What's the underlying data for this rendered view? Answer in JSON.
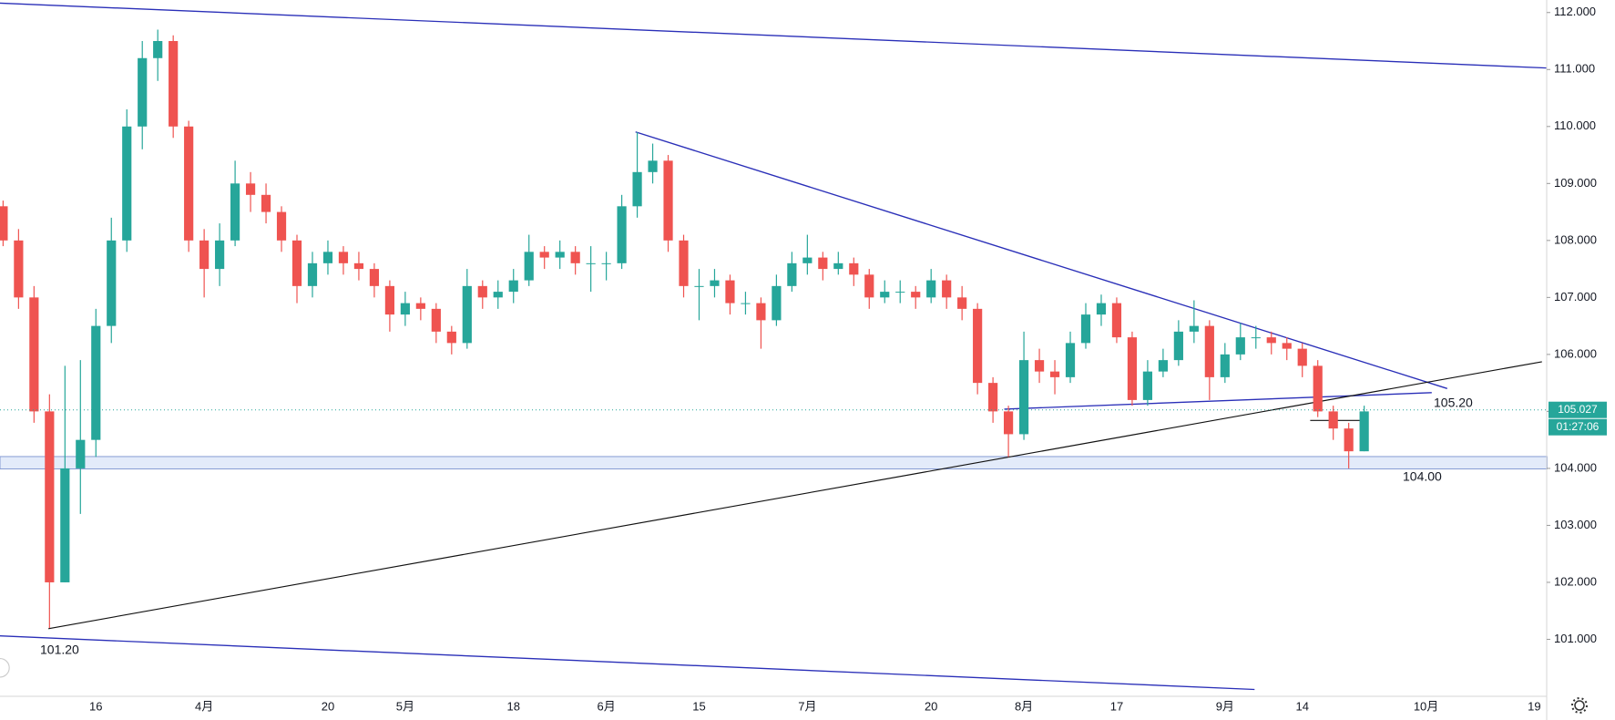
{
  "chart_data": {
    "type": "candlestick",
    "categories": [
      null,
      null,
      null,
      null,
      null,
      null,
      "16",
      null,
      null,
      null,
      null,
      null,
      null,
      "4月",
      null,
      null,
      null,
      null,
      null,
      null,
      null,
      "20",
      null,
      null,
      null,
      null,
      "5月",
      null,
      null,
      null,
      null,
      null,
      null,
      "18",
      null,
      null,
      null,
      null,
      null,
      "6月",
      null,
      null,
      null,
      null,
      null,
      "15",
      null,
      null,
      null,
      null,
      null,
      null,
      "7月",
      null,
      null,
      null,
      null,
      null,
      null,
      null,
      "20",
      null,
      null,
      null,
      null,
      null,
      "8月",
      null,
      null,
      null,
      null,
      null,
      "17",
      null,
      null,
      null,
      null,
      null,
      null,
      "9月",
      null,
      null,
      null,
      null,
      "14",
      null,
      null,
      null,
      null,
      null,
      null,
      null,
      "10月",
      null,
      null,
      null,
      null,
      null,
      null,
      "19"
    ],
    "ohlc": [
      [
        108.6,
        108.7,
        107.9,
        108.0
      ],
      [
        108.0,
        108.2,
        106.8,
        107.0
      ],
      [
        107.0,
        107.2,
        104.8,
        105.0
      ],
      [
        105.0,
        105.3,
        101.2,
        102.0
      ],
      [
        102.0,
        105.8,
        102.0,
        104.0
      ],
      [
        104.0,
        105.9,
        103.2,
        104.5
      ],
      [
        104.5,
        106.8,
        104.2,
        106.5
      ],
      [
        106.5,
        108.4,
        106.2,
        108.0
      ],
      [
        108.0,
        110.3,
        107.8,
        110.0
      ],
      [
        110.0,
        111.5,
        109.6,
        111.2
      ],
      [
        111.2,
        111.7,
        110.8,
        111.5
      ],
      [
        111.5,
        111.6,
        109.8,
        110.0
      ],
      [
        110.0,
        110.1,
        107.8,
        108.0
      ],
      [
        108.0,
        108.2,
        107.0,
        107.5
      ],
      [
        107.5,
        108.3,
        107.2,
        108.0
      ],
      [
        108.0,
        109.4,
        107.9,
        109.0
      ],
      [
        109.0,
        109.2,
        108.5,
        108.8
      ],
      [
        108.8,
        109.0,
        108.3,
        108.5
      ],
      [
        108.5,
        108.6,
        107.8,
        108.0
      ],
      [
        108.0,
        108.1,
        106.9,
        107.2
      ],
      [
        107.2,
        107.8,
        107.0,
        107.6
      ],
      [
        107.6,
        108.0,
        107.4,
        107.8
      ],
      [
        107.8,
        107.9,
        107.4,
        107.6
      ],
      [
        107.6,
        107.8,
        107.3,
        107.5
      ],
      [
        107.5,
        107.6,
        107.0,
        107.2
      ],
      [
        107.2,
        107.3,
        106.4,
        106.7
      ],
      [
        106.7,
        107.1,
        106.5,
        106.9
      ],
      [
        106.9,
        107.0,
        106.6,
        106.8
      ],
      [
        106.8,
        106.9,
        106.2,
        106.4
      ],
      [
        106.4,
        106.5,
        106.0,
        106.2
      ],
      [
        106.2,
        107.5,
        106.1,
        107.2
      ],
      [
        107.2,
        107.3,
        106.8,
        107.0
      ],
      [
        107.0,
        107.3,
        106.8,
        107.1
      ],
      [
        107.1,
        107.5,
        106.9,
        107.3
      ],
      [
        107.3,
        108.1,
        107.2,
        107.8
      ],
      [
        107.8,
        107.9,
        107.5,
        107.7
      ],
      [
        107.7,
        108.0,
        107.5,
        107.8
      ],
      [
        107.8,
        107.9,
        107.4,
        107.6
      ],
      [
        107.6,
        107.9,
        107.1,
        107.6
      ],
      [
        107.6,
        107.8,
        107.3,
        107.6
      ],
      [
        107.6,
        108.8,
        107.5,
        108.6
      ],
      [
        108.6,
        109.9,
        108.4,
        109.2
      ],
      [
        109.2,
        109.7,
        109.0,
        109.4
      ],
      [
        109.4,
        109.5,
        107.8,
        108.0
      ],
      [
        108.0,
        108.1,
        107.0,
        107.2
      ],
      [
        107.2,
        107.5,
        106.6,
        107.2
      ],
      [
        107.2,
        107.5,
        107.0,
        107.3
      ],
      [
        107.3,
        107.4,
        106.7,
        106.9
      ],
      [
        106.9,
        107.1,
        106.7,
        106.9
      ],
      [
        106.9,
        107.0,
        106.1,
        106.6
      ],
      [
        106.6,
        107.4,
        106.5,
        107.2
      ],
      [
        107.2,
        107.8,
        107.1,
        107.6
      ],
      [
        107.6,
        108.1,
        107.4,
        107.7
      ],
      [
        107.7,
        107.8,
        107.3,
        107.5
      ],
      [
        107.5,
        107.8,
        107.4,
        107.6
      ],
      [
        107.6,
        107.7,
        107.2,
        107.4
      ],
      [
        107.4,
        107.5,
        106.8,
        107.0
      ],
      [
        107.0,
        107.3,
        106.9,
        107.1
      ],
      [
        107.1,
        107.3,
        106.9,
        107.1
      ],
      [
        107.1,
        107.2,
        106.8,
        107.0
      ],
      [
        107.0,
        107.5,
        106.9,
        107.3
      ],
      [
        107.3,
        107.4,
        106.8,
        107.0
      ],
      [
        107.0,
        107.2,
        106.6,
        106.8
      ],
      [
        106.8,
        106.9,
        105.3,
        105.5
      ],
      [
        105.5,
        105.6,
        104.8,
        105.0
      ],
      [
        105.0,
        105.1,
        104.2,
        104.6
      ],
      [
        104.6,
        106.4,
        104.5,
        105.9
      ],
      [
        105.9,
        106.1,
        105.5,
        105.7
      ],
      [
        105.7,
        105.9,
        105.3,
        105.6
      ],
      [
        105.6,
        106.4,
        105.5,
        106.2
      ],
      [
        106.2,
        106.9,
        106.1,
        106.7
      ],
      [
        106.7,
        107.05,
        106.5,
        106.9
      ],
      [
        106.9,
        107.0,
        106.2,
        106.3
      ],
      [
        106.3,
        106.4,
        105.1,
        105.2
      ],
      [
        105.2,
        105.9,
        105.1,
        105.7
      ],
      [
        105.7,
        106.1,
        105.6,
        105.9
      ],
      [
        105.9,
        106.6,
        105.8,
        106.4
      ],
      [
        106.4,
        106.95,
        106.2,
        106.5
      ],
      [
        106.5,
        106.6,
        105.2,
        105.6
      ],
      [
        105.6,
        106.2,
        105.5,
        106.0
      ],
      [
        106.0,
        106.55,
        105.9,
        106.3
      ],
      [
        106.3,
        106.5,
        106.1,
        106.3
      ],
      [
        106.3,
        106.4,
        106.0,
        106.2
      ],
      [
        106.2,
        106.3,
        105.9,
        106.1
      ],
      [
        106.1,
        106.2,
        105.6,
        105.8
      ],
      [
        105.8,
        105.9,
        104.9,
        105.0
      ],
      [
        105.0,
        105.1,
        104.5,
        104.7
      ],
      [
        104.7,
        104.8,
        104.0,
        104.3
      ],
      [
        104.3,
        105.1,
        104.3,
        105.0
      ],
      null,
      null,
      null,
      null,
      null,
      null,
      null,
      null,
      null,
      null,
      null
    ],
    "up_color": "#26a69a",
    "down_color": "#ef5350",
    "ylim": [
      100.0,
      112.22
    ],
    "yticks": [
      {
        "value": 101,
        "label": "101.000"
      },
      {
        "value": 102,
        "label": "102.000"
      },
      {
        "value": 103,
        "label": "103.000"
      },
      {
        "value": 104,
        "label": "104.000"
      },
      {
        "value": 105,
        "label": "105.000"
      },
      {
        "value": 106,
        "label": "106.000"
      },
      {
        "value": 107,
        "label": "107.000"
      },
      {
        "value": 108,
        "label": "108.000"
      },
      {
        "value": 109,
        "label": "109.000"
      },
      {
        "value": 110,
        "label": "110.000"
      },
      {
        "value": 111,
        "label": "111.000"
      },
      {
        "value": 112,
        "label": "112.000"
      }
    ],
    "last_price": 105.027,
    "countdown": "01:27:06",
    "annotations": [
      {
        "value": 105.2,
        "label": "105.20"
      },
      {
        "value": 104.0,
        "label": "104.00"
      },
      {
        "value": 101.2,
        "label": "101.20"
      }
    ]
  }
}
